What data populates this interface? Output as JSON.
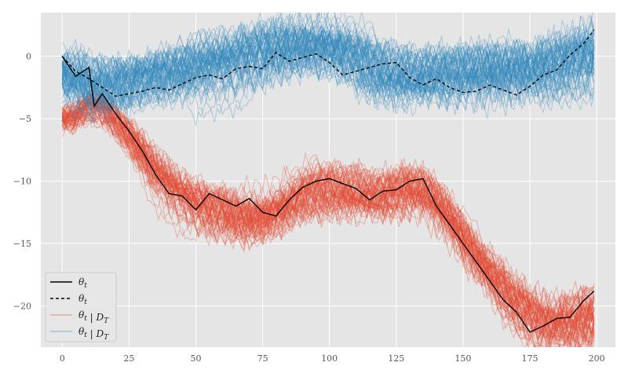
{
  "chart_data": {
    "type": "line",
    "title": "",
    "xlabel": "",
    "ylabel": "",
    "xlim": [
      -8,
      207
    ],
    "ylim": [
      -23.3,
      3.5
    ],
    "xticks": [
      0,
      25,
      50,
      75,
      100,
      125,
      150,
      175,
      200
    ],
    "yticks": [
      0,
      -5,
      -10,
      -15,
      -20
    ],
    "grid": true,
    "legend_position": "lower-left",
    "colors": {
      "background": "#e5e5e5",
      "grid": "#ffffff",
      "blue_band": "#348abd",
      "red_band": "#e24a33",
      "true_path": "#000000"
    },
    "series": [
      {
        "name": "θ_t",
        "legend_label": "θt",
        "style": "solid",
        "color": "#000000",
        "x": [
          0,
          5,
          10,
          12,
          15,
          20,
          25,
          30,
          35,
          40,
          45,
          50,
          55,
          60,
          65,
          70,
          75,
          80,
          85,
          90,
          95,
          100,
          105,
          110,
          115,
          120,
          125,
          130,
          135,
          140,
          145,
          150,
          155,
          160,
          165,
          170,
          175,
          180,
          185,
          190,
          195,
          199
        ],
        "y": [
          0,
          -1.6,
          -0.9,
          -4.0,
          -3.0,
          -4.6,
          -6.0,
          -7.6,
          -9.5,
          -11.0,
          -11.2,
          -12.3,
          -11.0,
          -11.5,
          -12.0,
          -11.4,
          -12.5,
          -12.8,
          -11.5,
          -10.5,
          -10.0,
          -9.8,
          -10.2,
          -10.6,
          -11.5,
          -10.8,
          -10.7,
          -10.0,
          -9.8,
          -12.0,
          -13.5,
          -15.0,
          -16.5,
          -18.0,
          -19.5,
          -20.5,
          -22.1,
          -21.6,
          -21.0,
          -20.9,
          -19.6,
          -18.8
        ]
      },
      {
        "name": "θ_t",
        "legend_label": "θt",
        "style": "dashed",
        "color": "#000000",
        "x": [
          0,
          5,
          10,
          15,
          20,
          25,
          30,
          35,
          40,
          45,
          50,
          55,
          60,
          65,
          70,
          75,
          80,
          85,
          90,
          95,
          100,
          105,
          110,
          115,
          120,
          125,
          130,
          135,
          140,
          145,
          150,
          155,
          160,
          165,
          170,
          175,
          180,
          185,
          190,
          195,
          199
        ],
        "y": [
          0,
          -1.2,
          -1.8,
          -2.5,
          -3.2,
          -3.0,
          -2.8,
          -2.5,
          -2.7,
          -2.2,
          -1.7,
          -1.5,
          -1.8,
          -1.0,
          -0.8,
          -1.0,
          0.3,
          -0.4,
          -0.1,
          0.2,
          -0.5,
          -1.5,
          -1.2,
          -0.9,
          -0.6,
          -0.5,
          -1.7,
          -2.3,
          -1.8,
          -2.5,
          -2.9,
          -2.8,
          -2.3,
          -2.7,
          -3.1,
          -2.4,
          -1.5,
          -1.1,
          0.1,
          1.0,
          2.1
        ]
      },
      {
        "name": "θ_t | D_T",
        "legend_label": "θt | DT",
        "style": "band",
        "color": "#e24a33",
        "x": [
          0,
          5,
          10,
          15,
          20,
          25,
          30,
          35,
          40,
          45,
          50,
          55,
          60,
          65,
          70,
          75,
          80,
          85,
          90,
          95,
          100,
          105,
          110,
          115,
          120,
          125,
          130,
          135,
          140,
          145,
          150,
          155,
          160,
          165,
          170,
          175,
          180,
          185,
          190,
          195,
          199
        ],
        "y": [
          -5.0,
          -4.8,
          -4.0,
          -4.2,
          -5.1,
          -6.3,
          -7.7,
          -9.0,
          -10.1,
          -11.0,
          -11.7,
          -12.2,
          -12.5,
          -12.8,
          -13.0,
          -12.9,
          -12.6,
          -12.0,
          -11.2,
          -10.6,
          -10.3,
          -10.3,
          -10.5,
          -10.8,
          -11.0,
          -10.9,
          -10.8,
          -11.0,
          -11.8,
          -13.0,
          -14.4,
          -15.8,
          -17.0,
          -18.3,
          -19.5,
          -20.5,
          -21.2,
          -21.5,
          -21.4,
          -21.0,
          -20.6
        ],
        "spread": [
          1.2,
          1.2,
          1.3,
          1.4,
          1.5,
          1.6,
          1.7,
          1.8,
          1.8,
          1.8,
          1.9,
          1.9,
          1.9,
          2.0,
          2.0,
          2.0,
          2.0,
          2.0,
          2.0,
          2.0,
          2.0,
          2.0,
          2.0,
          2.0,
          2.0,
          2.0,
          2.0,
          2.0,
          2.0,
          2.0,
          2.0,
          2.0,
          2.1,
          2.1,
          2.2,
          2.2,
          2.3,
          2.3,
          2.4,
          2.5,
          2.6
        ]
      },
      {
        "name": "θ_t | D_T",
        "legend_label": "θt | DT",
        "style": "band",
        "color": "#348abd",
        "x": [
          0,
          5,
          10,
          15,
          20,
          25,
          30,
          35,
          40,
          45,
          50,
          55,
          60,
          65,
          70,
          75,
          80,
          85,
          90,
          95,
          100,
          105,
          110,
          115,
          120,
          125,
          130,
          135,
          140,
          145,
          150,
          155,
          160,
          165,
          170,
          175,
          180,
          185,
          190,
          195,
          199
        ],
        "y": [
          -1.6,
          -1.9,
          -2.1,
          -2.2,
          -2.1,
          -2.0,
          -1.8,
          -1.5,
          -1.2,
          -0.9,
          -0.6,
          -0.4,
          -0.2,
          0.0,
          0.2,
          0.4,
          0.6,
          0.7,
          0.8,
          0.7,
          0.5,
          0.2,
          -0.1,
          -0.4,
          -0.7,
          -0.9,
          -1.1,
          -1.3,
          -1.4,
          -1.5,
          -1.5,
          -1.4,
          -1.3,
          -1.1,
          -0.9,
          -0.7,
          -0.5,
          -0.3,
          -0.1,
          0.0,
          0.1
        ],
        "spread": [
          2.4,
          2.3,
          2.3,
          2.3,
          2.3,
          2.3,
          2.3,
          2.3,
          2.3,
          2.3,
          2.3,
          2.3,
          2.3,
          2.3,
          2.3,
          2.3,
          2.3,
          2.3,
          2.3,
          2.3,
          2.3,
          2.3,
          2.3,
          2.3,
          2.3,
          2.3,
          2.3,
          2.3,
          2.3,
          2.3,
          2.3,
          2.3,
          2.4,
          2.4,
          2.5,
          2.5,
          2.6,
          2.6,
          2.7,
          2.8,
          2.9
        ]
      }
    ]
  }
}
